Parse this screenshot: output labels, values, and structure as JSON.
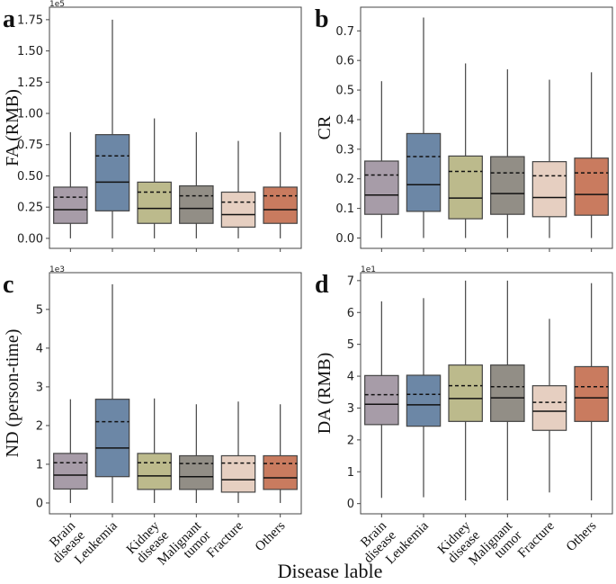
{
  "figure": {
    "shared_xlabel": "Disease lable",
    "colors": {
      "Brain disease": "#a79ca8",
      "Leukemia": "#6c87a6",
      "Kidney disease": "#bcba8c",
      "Malignant tumor": "#928e86",
      "Fracture": "#e6cfc1",
      "Others": "#c97b5f",
      "mean_line": "#111111",
      "frame": "#444444"
    }
  },
  "chart_data": [
    {
      "panel_label": "a",
      "type": "box",
      "ylabel": "FA (RMB)",
      "offset_text": "1e5",
      "ylim": [
        -0.08,
        1.85
      ],
      "yticks": [
        0.0,
        0.25,
        0.5,
        0.75,
        1.0,
        1.25,
        1.5,
        1.75
      ],
      "yticklabels": [
        "0.00",
        "0.25",
        "0.50",
        "0.75",
        "1.00",
        "1.25",
        "1.50",
        "1.75"
      ],
      "categories": [
        "Brain disease",
        "Leukemia",
        "Kidney disease",
        "Malignant tumor",
        "Fracture",
        "Others"
      ],
      "xticklabels": [],
      "boxes": [
        {
          "category": "Brain disease",
          "whisker_low": 0.0,
          "q1": 0.12,
          "median": 0.23,
          "mean": 0.33,
          "q3": 0.41,
          "whisker_high": 0.85
        },
        {
          "category": "Leukemia",
          "whisker_low": 0.0,
          "q1": 0.22,
          "median": 0.45,
          "mean": 0.66,
          "q3": 0.83,
          "whisker_high": 1.75
        },
        {
          "category": "Kidney disease",
          "whisker_low": 0.0,
          "q1": 0.12,
          "median": 0.24,
          "mean": 0.37,
          "q3": 0.45,
          "whisker_high": 0.96
        },
        {
          "category": "Malignant tumor",
          "whisker_low": 0.0,
          "q1": 0.12,
          "median": 0.24,
          "mean": 0.34,
          "q3": 0.42,
          "whisker_high": 0.85
        },
        {
          "category": "Fracture",
          "whisker_low": 0.0,
          "q1": 0.09,
          "median": 0.19,
          "mean": 0.29,
          "q3": 0.37,
          "whisker_high": 0.78
        },
        {
          "category": "Others",
          "whisker_low": 0.0,
          "q1": 0.12,
          "median": 0.23,
          "mean": 0.34,
          "q3": 0.41,
          "whisker_high": 0.85
        }
      ]
    },
    {
      "panel_label": "b",
      "type": "box",
      "ylabel": "CR",
      "offset_text": "",
      "ylim": [
        -0.035,
        0.78
      ],
      "yticks": [
        0.0,
        0.1,
        0.2,
        0.3,
        0.4,
        0.5,
        0.6,
        0.7
      ],
      "yticklabels": [
        "0.0",
        "0.1",
        "0.2",
        "0.3",
        "0.4",
        "0.5",
        "0.6",
        "0.7"
      ],
      "categories": [
        "Brain disease",
        "Leukemia",
        "Kidney disease",
        "Malignant tumor",
        "Fracture",
        "Others"
      ],
      "xticklabels": [],
      "boxes": [
        {
          "category": "Brain disease",
          "whisker_low": 0.0,
          "q1": 0.08,
          "median": 0.145,
          "mean": 0.213,
          "q3": 0.26,
          "whisker_high": 0.53
        },
        {
          "category": "Leukemia",
          "whisker_low": 0.0,
          "q1": 0.09,
          "median": 0.18,
          "mean": 0.275,
          "q3": 0.353,
          "whisker_high": 0.745
        },
        {
          "category": "Kidney disease",
          "whisker_low": 0.0,
          "q1": 0.065,
          "median": 0.135,
          "mean": 0.225,
          "q3": 0.277,
          "whisker_high": 0.59
        },
        {
          "category": "Malignant tumor",
          "whisker_low": 0.0,
          "q1": 0.08,
          "median": 0.15,
          "mean": 0.22,
          "q3": 0.275,
          "whisker_high": 0.57
        },
        {
          "category": "Fracture",
          "whisker_low": 0.0,
          "q1": 0.072,
          "median": 0.137,
          "mean": 0.21,
          "q3": 0.258,
          "whisker_high": 0.535
        },
        {
          "category": "Others",
          "whisker_low": 0.0,
          "q1": 0.077,
          "median": 0.147,
          "mean": 0.22,
          "q3": 0.27,
          "whisker_high": 0.56
        }
      ]
    },
    {
      "panel_label": "c",
      "type": "box",
      "ylabel": "ND (person-time)",
      "offset_text": "1e3",
      "ylim": [
        -0.28,
        5.95
      ],
      "yticks": [
        0,
        1,
        2,
        3,
        4,
        5
      ],
      "yticklabels": [
        "0",
        "1",
        "2",
        "3",
        "4",
        "5"
      ],
      "categories": [
        "Brain disease",
        "Leukemia",
        "Kidney disease",
        "Malignant tumor",
        "Fracture",
        "Others"
      ],
      "xticklabels": [
        "Brain\ndisease",
        "Leukemia",
        "Kidney\ndisease",
        "Malignant\ntumor",
        "Fracture",
        "Others"
      ],
      "boxes": [
        {
          "category": "Brain disease",
          "whisker_low": 0.0,
          "q1": 0.36,
          "median": 0.72,
          "mean": 1.04,
          "q3": 1.28,
          "whisker_high": 2.68
        },
        {
          "category": "Leukemia",
          "whisker_low": 0.0,
          "q1": 0.68,
          "median": 1.42,
          "mean": 2.1,
          "q3": 2.68,
          "whisker_high": 5.65
        },
        {
          "category": "Kidney disease",
          "whisker_low": 0.0,
          "q1": 0.35,
          "median": 0.7,
          "mean": 1.04,
          "q3": 1.28,
          "whisker_high": 2.7
        },
        {
          "category": "Malignant tumor",
          "whisker_low": 0.0,
          "q1": 0.35,
          "median": 0.68,
          "mean": 1.02,
          "q3": 1.22,
          "whisker_high": 2.55
        },
        {
          "category": "Fracture",
          "whisker_low": 0.0,
          "q1": 0.28,
          "median": 0.6,
          "mean": 1.03,
          "q3": 1.22,
          "whisker_high": 2.62
        },
        {
          "category": "Others",
          "whisker_low": 0.0,
          "q1": 0.35,
          "median": 0.65,
          "mean": 1.02,
          "q3": 1.22,
          "whisker_high": 2.55
        }
      ]
    },
    {
      "panel_label": "d",
      "type": "box",
      "ylabel": "DA (RMB)",
      "offset_text": "1e1",
      "ylim": [
        -0.32,
        7.25
      ],
      "yticks": [
        0,
        1,
        2,
        3,
        4,
        5,
        6,
        7
      ],
      "yticklabels": [
        "0",
        "1",
        "2",
        "3",
        "4",
        "5",
        "6",
        "7"
      ],
      "categories": [
        "Brain disease",
        "Leukemia",
        "Kidney disease",
        "Malignant tumor",
        "Fracture",
        "Others"
      ],
      "xticklabels": [
        "Brain\ndisease",
        "Leukemia",
        "Kidney\ndisease",
        "Malignant\ntumor",
        "Fracture",
        "Others"
      ],
      "boxes": [
        {
          "category": "Brain disease",
          "whisker_low": 0.18,
          "q1": 2.48,
          "median": 3.12,
          "mean": 3.42,
          "q3": 4.02,
          "whisker_high": 6.35
        },
        {
          "category": "Leukemia",
          "whisker_low": 0.2,
          "q1": 2.43,
          "median": 3.1,
          "mean": 3.43,
          "q3": 4.03,
          "whisker_high": 6.45
        },
        {
          "category": "Kidney disease",
          "whisker_low": 0.1,
          "q1": 2.58,
          "median": 3.3,
          "mean": 3.7,
          "q3": 4.35,
          "whisker_high": 7.0
        },
        {
          "category": "Malignant tumor",
          "whisker_low": 0.1,
          "q1": 2.58,
          "median": 3.32,
          "mean": 3.67,
          "q3": 4.35,
          "whisker_high": 7.0
        },
        {
          "category": "Fracture",
          "whisker_low": 0.35,
          "q1": 2.3,
          "median": 2.9,
          "mean": 3.18,
          "q3": 3.7,
          "whisker_high": 5.8
        },
        {
          "category": "Others",
          "whisker_low": 0.1,
          "q1": 2.58,
          "median": 3.32,
          "mean": 3.67,
          "q3": 4.3,
          "whisker_high": 6.92
        }
      ]
    }
  ]
}
